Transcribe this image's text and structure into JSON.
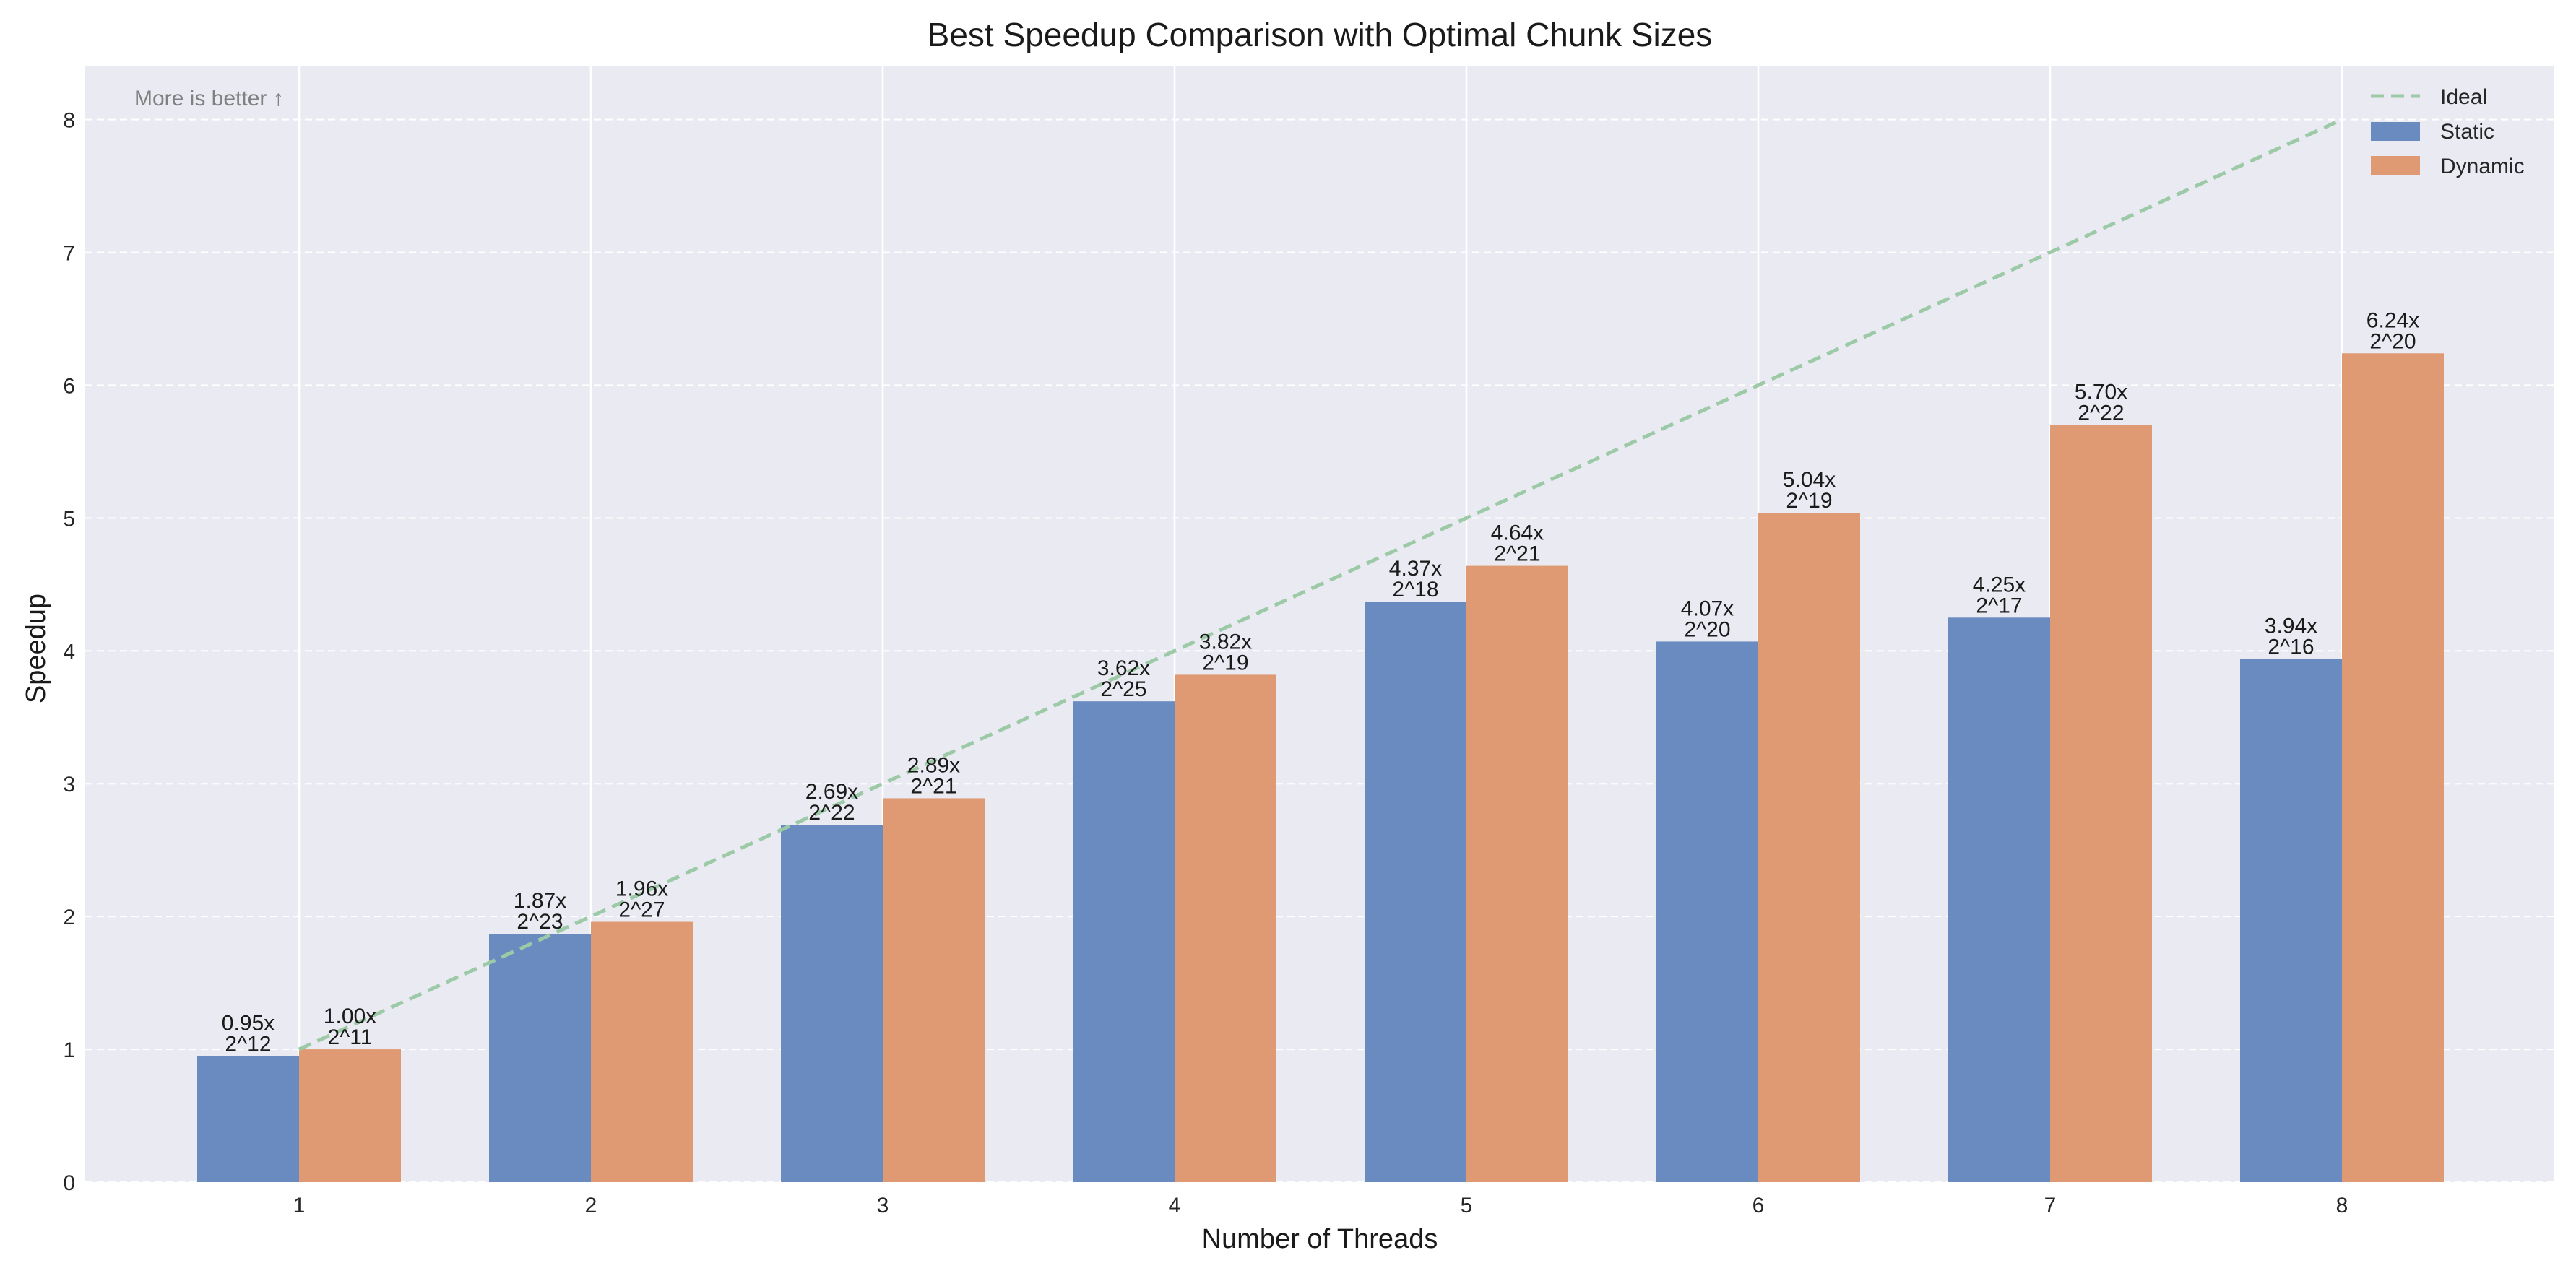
{
  "chart_data": {
    "type": "bar",
    "title": "Best Speedup Comparison with Optimal Chunk Sizes",
    "xlabel": "Number of Threads",
    "ylabel": "Speedup",
    "categories": [
      "1",
      "2",
      "3",
      "4",
      "5",
      "6",
      "7",
      "8"
    ],
    "ylim": [
      0,
      8.4
    ],
    "yticks": [
      "0",
      "1",
      "2",
      "3",
      "4",
      "5",
      "6",
      "7",
      "8"
    ],
    "grid": true,
    "legend_position": "top-right",
    "annotation": "More is better ↑",
    "series": [
      {
        "name": "Static",
        "color": "#6a8bbf",
        "values": [
          0.95,
          1.87,
          2.69,
          3.62,
          4.37,
          4.07,
          4.25,
          3.94
        ],
        "value_labels": [
          "0.95x",
          "1.87x",
          "2.69x",
          "3.62x",
          "4.37x",
          "4.07x",
          "4.25x",
          "3.94x"
        ],
        "chunk_labels": [
          "2^12",
          "2^23",
          "2^22",
          "2^25",
          "2^18",
          "2^20",
          "2^17",
          "2^16"
        ]
      },
      {
        "name": "Dynamic",
        "color": "#e09a73",
        "values": [
          1.0,
          1.96,
          2.89,
          3.82,
          4.64,
          5.04,
          5.7,
          6.24
        ],
        "value_labels": [
          "1.00x",
          "1.96x",
          "2.89x",
          "3.82x",
          "4.64x",
          "5.04x",
          "5.70x",
          "6.24x"
        ],
        "chunk_labels": [
          "2^11",
          "2^27",
          "2^21",
          "2^19",
          "2^21",
          "2^19",
          "2^22",
          "2^20"
        ]
      }
    ],
    "ideal_line": {
      "name": "Ideal",
      "color": "#9ccaa6",
      "x": [
        1,
        8
      ],
      "y": [
        1,
        8
      ]
    }
  }
}
